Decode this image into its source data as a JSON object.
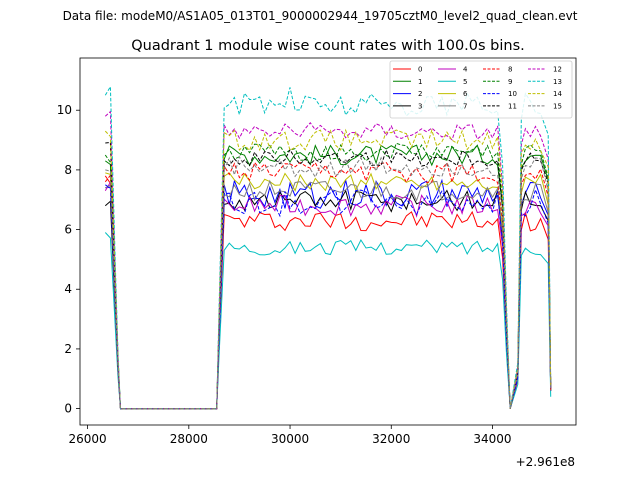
{
  "suptitle": "Data file: modeM0/AS1A05_013T01_9000002944_19705cztM0_level2_quad_clean.evt",
  "chart_data": {
    "type": "line",
    "title": "Quadrant 1 module wise count rates with 100.0s bins.",
    "xlabel": "",
    "ylabel": "",
    "x_offset_label": "+2.961e8",
    "xlim": [
      25850,
      35650
    ],
    "ylim": [
      -0.55,
      11.75
    ],
    "x_ticks": [
      26000,
      28000,
      30000,
      32000,
      34000
    ],
    "x_tick_labels": [
      "26000",
      "28000",
      "30000",
      "32000",
      "34000"
    ],
    "y_ticks": [
      0,
      2,
      4,
      6,
      8,
      10
    ],
    "y_tick_labels": [
      "0",
      "2",
      "4",
      "6",
      "8",
      "10"
    ],
    "grid": false,
    "legend_position": "top-right",
    "segments": [
      {
        "start": 26350,
        "end": 28550
      },
      {
        "start": 28650,
        "end": 34350
      },
      {
        "start": 34450,
        "end": 35150
      }
    ],
    "series": [
      {
        "name": "0",
        "color": "#ff0000",
        "style": "solid",
        "level": 6.3,
        "amp": 0.35,
        "first": 7.8,
        "last": 0.6
      },
      {
        "name": "1",
        "color": "#008000",
        "style": "solid",
        "level": 8.5,
        "amp": 0.35,
        "first": 8.3,
        "last": 0.7
      },
      {
        "name": "2",
        "color": "#0000ff",
        "style": "solid",
        "level": 7.2,
        "amp": 0.5,
        "first": 7.4,
        "last": 0.6
      },
      {
        "name": "3",
        "color": "#000000",
        "style": "solid",
        "level": 7.0,
        "amp": 0.4,
        "first": 6.8,
        "last": 0.6
      },
      {
        "name": "4",
        "color": "#bf00bf",
        "style": "solid",
        "level": 6.8,
        "amp": 0.35,
        "first": 7.3,
        "last": 0.6
      },
      {
        "name": "5",
        "color": "#00bfbf",
        "style": "solid",
        "level": 5.4,
        "amp": 0.25,
        "first": 5.9,
        "last": 0.4
      },
      {
        "name": "6",
        "color": "#bfbf00",
        "style": "solid",
        "level": 7.6,
        "amp": 0.3,
        "first": 7.9,
        "last": 0.6
      },
      {
        "name": "7",
        "color": "#808080",
        "style": "solid",
        "level": 7.3,
        "amp": 0.35,
        "first": 7.4,
        "last": 0.6
      },
      {
        "name": "8",
        "color": "#ff0000",
        "style": "dashed",
        "level": 7.9,
        "amp": 0.35,
        "first": 7.6,
        "last": 0.6
      },
      {
        "name": "9",
        "color": "#008000",
        "style": "dashed",
        "level": 8.6,
        "amp": 0.3,
        "first": 8.5,
        "last": 0.7
      },
      {
        "name": "10",
        "color": "#0000ff",
        "style": "dashed",
        "level": 6.9,
        "amp": 0.45,
        "first": 7.5,
        "last": 0.6
      },
      {
        "name": "11",
        "color": "#000000",
        "style": "dashed",
        "level": 8.4,
        "amp": 0.3,
        "first": 8.9,
        "last": 0.7
      },
      {
        "name": "12",
        "color": "#bf00bf",
        "style": "dashed",
        "level": 9.3,
        "amp": 0.3,
        "first": 9.8,
        "last": 0.7
      },
      {
        "name": "13",
        "color": "#00bfbf",
        "style": "dashed",
        "level": 10.2,
        "amp": 0.4,
        "first": 10.5,
        "last": 0.8
      },
      {
        "name": "14",
        "color": "#bfbf00",
        "style": "dashed",
        "level": 9.0,
        "amp": 0.35,
        "first": 9.3,
        "last": 0.7
      },
      {
        "name": "15",
        "color": "#808080",
        "style": "dashed",
        "level": 8.1,
        "amp": 0.35,
        "first": 8.0,
        "last": 0.6
      }
    ]
  }
}
